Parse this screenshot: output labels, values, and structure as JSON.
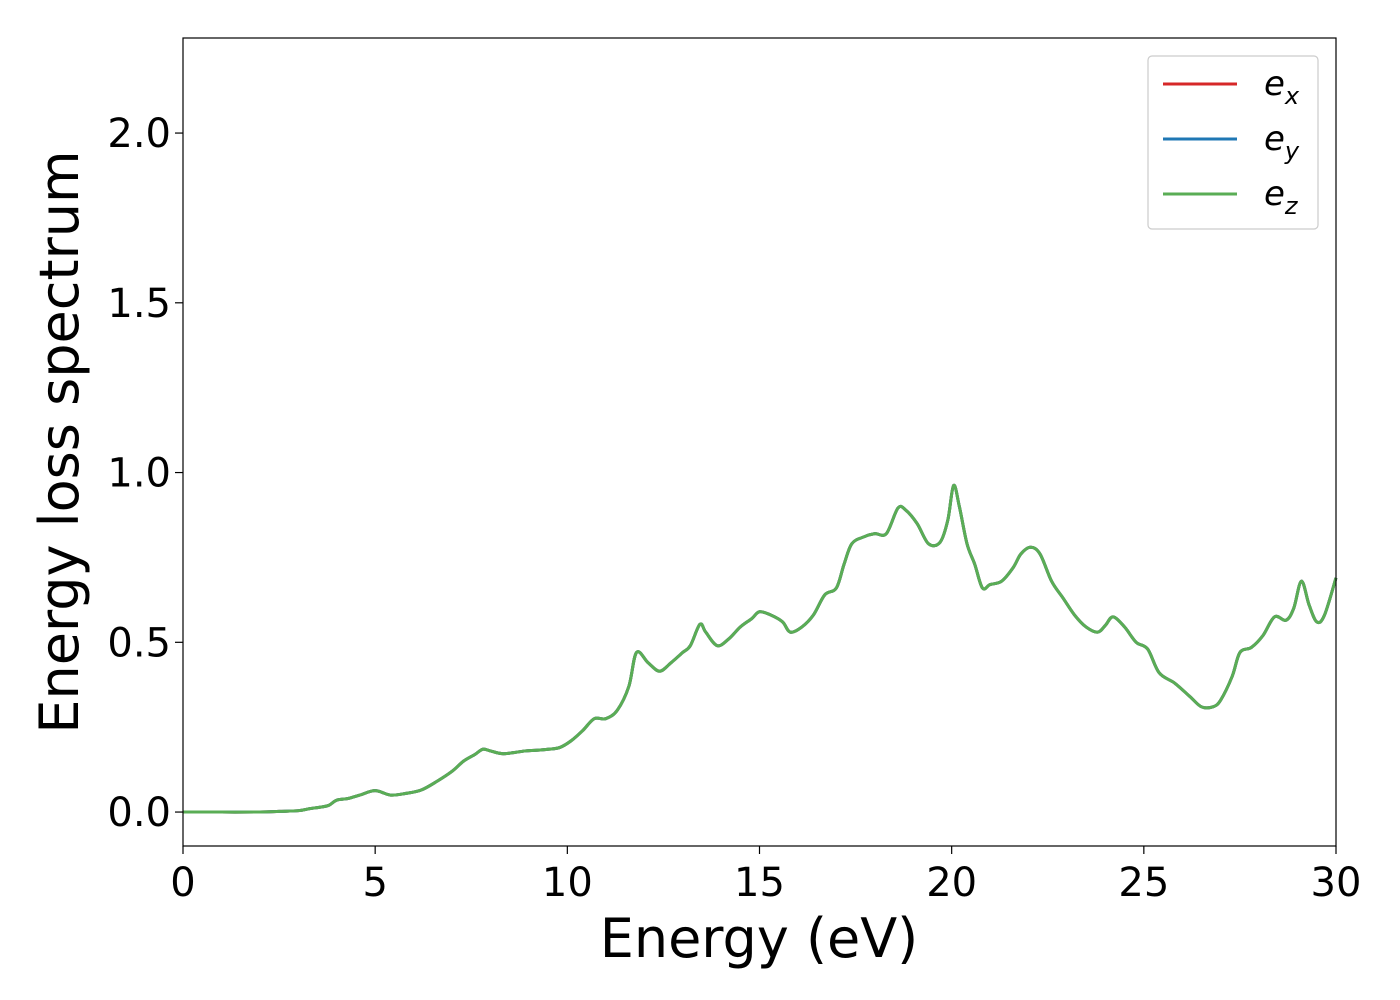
{
  "chart_data": {
    "type": "line",
    "xlabel": "Energy (eV)",
    "ylabel": "Energy loss spectrum",
    "xlim": [
      0,
      30
    ],
    "ylim": [
      -0.1,
      2.28
    ],
    "x_ticks": [
      0,
      5,
      10,
      15,
      20,
      25,
      30
    ],
    "x_tick_labels": [
      "0",
      "5",
      "10",
      "15",
      "20",
      "25",
      "30"
    ],
    "y_ticks": [
      0.0,
      0.5,
      1.0,
      1.5,
      2.0
    ],
    "y_tick_labels": [
      "0.0",
      "0.5",
      "1.0",
      "1.5",
      "2.0"
    ],
    "grid": false,
    "legend_position": "top-right",
    "legend": [
      {
        "base": "e",
        "sub": "x"
      },
      {
        "base": "e",
        "sub": "y"
      },
      {
        "base": "e",
        "sub": "z"
      }
    ],
    "x": [
      0,
      1,
      2,
      2.5,
      3,
      3.3,
      3.6,
      3.8,
      4.0,
      4.3,
      4.6,
      5.0,
      5.4,
      5.8,
      6.2,
      6.6,
      7.0,
      7.3,
      7.6,
      7.8,
      8.0,
      8.3,
      8.6,
      8.9,
      9.2,
      9.5,
      9.8,
      10.1,
      10.4,
      10.7,
      11.0,
      11.3,
      11.6,
      11.8,
      12.1,
      12.4,
      12.7,
      13.0,
      13.2,
      13.45,
      13.6,
      13.9,
      14.2,
      14.5,
      14.8,
      15.0,
      15.3,
      15.6,
      15.8,
      16.1,
      16.4,
      16.7,
      17.0,
      17.2,
      17.4,
      17.7,
      18.0,
      18.3,
      18.6,
      18.8,
      19.1,
      19.4,
      19.7,
      19.9,
      20.05,
      20.2,
      20.4,
      20.6,
      20.8,
      21.0,
      21.3,
      21.6,
      21.8,
      22.05,
      22.3,
      22.6,
      22.9,
      23.2,
      23.5,
      23.8,
      24.0,
      24.2,
      24.5,
      24.8,
      25.1,
      25.4,
      25.8,
      26.2,
      26.5,
      26.8,
      27.0,
      27.3,
      27.5,
      27.8,
      28.1,
      28.4,
      28.7,
      28.9,
      29.1,
      29.3,
      29.5,
      29.7,
      30.0
    ],
    "series": [
      {
        "name": "e_x",
        "color": "#d62728",
        "values": [
          0,
          0,
          0,
          0.002,
          0.004,
          0.01,
          0.015,
          0.02,
          0.035,
          0.04,
          0.05,
          0.063,
          0.05,
          0.055,
          0.065,
          0.09,
          0.12,
          0.15,
          0.17,
          0.185,
          0.18,
          0.172,
          0.175,
          0.18,
          0.182,
          0.185,
          0.19,
          0.21,
          0.24,
          0.275,
          0.275,
          0.3,
          0.37,
          0.47,
          0.44,
          0.415,
          0.44,
          0.47,
          0.49,
          0.553,
          0.53,
          0.49,
          0.51,
          0.545,
          0.57,
          0.59,
          0.58,
          0.56,
          0.53,
          0.545,
          0.58,
          0.64,
          0.66,
          0.73,
          0.79,
          0.81,
          0.82,
          0.82,
          0.895,
          0.89,
          0.85,
          0.79,
          0.795,
          0.86,
          0.962,
          0.9,
          0.79,
          0.73,
          0.66,
          0.67,
          0.68,
          0.72,
          0.76,
          0.78,
          0.76,
          0.68,
          0.63,
          0.58,
          0.545,
          0.53,
          0.55,
          0.575,
          0.545,
          0.5,
          0.48,
          0.41,
          0.38,
          0.34,
          0.31,
          0.31,
          0.33,
          0.4,
          0.47,
          0.485,
          0.52,
          0.575,
          0.565,
          0.6,
          0.68,
          0.61,
          0.56,
          0.58,
          0.69
        ]
      },
      {
        "name": "e_y",
        "color": "#1f77b4",
        "values": [
          0,
          0,
          0,
          0.002,
          0.004,
          0.01,
          0.015,
          0.02,
          0.035,
          0.04,
          0.05,
          0.063,
          0.05,
          0.055,
          0.065,
          0.09,
          0.12,
          0.15,
          0.17,
          0.185,
          0.18,
          0.172,
          0.175,
          0.18,
          0.182,
          0.185,
          0.19,
          0.21,
          0.24,
          0.275,
          0.275,
          0.3,
          0.37,
          0.47,
          0.44,
          0.415,
          0.44,
          0.47,
          0.49,
          0.553,
          0.53,
          0.49,
          0.51,
          0.545,
          0.57,
          0.59,
          0.58,
          0.56,
          0.53,
          0.545,
          0.58,
          0.64,
          0.66,
          0.73,
          0.79,
          0.81,
          0.82,
          0.82,
          0.895,
          0.89,
          0.85,
          0.79,
          0.795,
          0.86,
          0.962,
          0.9,
          0.79,
          0.73,
          0.66,
          0.67,
          0.68,
          0.72,
          0.76,
          0.78,
          0.76,
          0.68,
          0.63,
          0.58,
          0.545,
          0.53,
          0.55,
          0.575,
          0.545,
          0.5,
          0.48,
          0.41,
          0.38,
          0.34,
          0.31,
          0.31,
          0.33,
          0.4,
          0.47,
          0.485,
          0.52,
          0.575,
          0.565,
          0.6,
          0.68,
          0.61,
          0.56,
          0.58,
          0.69
        ]
      },
      {
        "name": "e_z",
        "color": "#5aad55",
        "values": [
          0,
          0,
          0,
          0.002,
          0.004,
          0.01,
          0.015,
          0.02,
          0.035,
          0.04,
          0.05,
          0.063,
          0.05,
          0.055,
          0.065,
          0.09,
          0.12,
          0.15,
          0.17,
          0.185,
          0.18,
          0.172,
          0.175,
          0.18,
          0.182,
          0.185,
          0.19,
          0.21,
          0.24,
          0.275,
          0.275,
          0.3,
          0.37,
          0.47,
          0.44,
          0.415,
          0.44,
          0.47,
          0.49,
          0.553,
          0.53,
          0.49,
          0.51,
          0.545,
          0.57,
          0.59,
          0.58,
          0.56,
          0.53,
          0.545,
          0.58,
          0.64,
          0.66,
          0.73,
          0.79,
          0.81,
          0.82,
          0.82,
          0.895,
          0.89,
          0.85,
          0.79,
          0.795,
          0.86,
          0.962,
          0.9,
          0.79,
          0.73,
          0.66,
          0.67,
          0.68,
          0.72,
          0.76,
          0.78,
          0.76,
          0.68,
          0.63,
          0.58,
          0.545,
          0.53,
          0.55,
          0.575,
          0.545,
          0.5,
          0.48,
          0.41,
          0.38,
          0.34,
          0.31,
          0.31,
          0.33,
          0.4,
          0.47,
          0.485,
          0.52,
          0.575,
          0.565,
          0.6,
          0.68,
          0.61,
          0.56,
          0.58,
          0.69
        ]
      }
    ]
  }
}
